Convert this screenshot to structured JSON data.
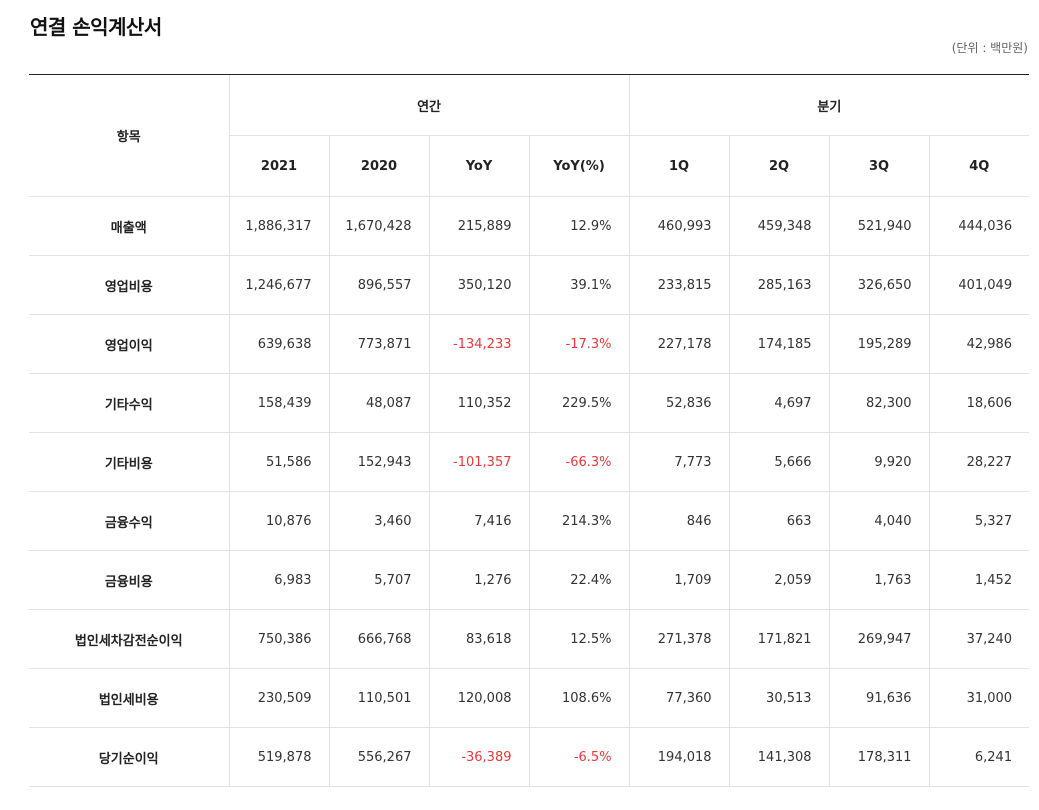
{
  "page": {
    "title": "연결 손익계산서",
    "unit": "(단위 : 백만원)"
  },
  "table": {
    "item_header": "항목",
    "groups": {
      "annual": "연간",
      "quarterly": "분기"
    },
    "columns": [
      "2021",
      "2020",
      "YoY",
      "YoY(%)",
      "1Q",
      "2Q",
      "3Q",
      "4Q"
    ],
    "rows": [
      {
        "label": "매출액",
        "values": [
          "1,886,317",
          "1,670,428",
          "215,889",
          "12.9%",
          "460,993",
          "459,348",
          "521,940",
          "444,036"
        ]
      },
      {
        "label": "영업비용",
        "values": [
          "1,246,677",
          "896,557",
          "350,120",
          "39.1%",
          "233,815",
          "285,163",
          "326,650",
          "401,049"
        ]
      },
      {
        "label": "영업이익",
        "values": [
          "639,638",
          "773,871",
          "-134,233",
          "-17.3%",
          "227,178",
          "174,185",
          "195,289",
          "42,986"
        ]
      },
      {
        "label": "기타수익",
        "values": [
          "158,439",
          "48,087",
          "110,352",
          "229.5%",
          "52,836",
          "4,697",
          "82,300",
          "18,606"
        ]
      },
      {
        "label": "기타비용",
        "values": [
          "51,586",
          "152,943",
          "-101,357",
          "-66.3%",
          "7,773",
          "5,666",
          "9,920",
          "28,227"
        ]
      },
      {
        "label": "금융수익",
        "values": [
          "10,876",
          "3,460",
          "7,416",
          "214.3%",
          "846",
          "663",
          "4,040",
          "5,327"
        ]
      },
      {
        "label": "금융비용",
        "values": [
          "6,983",
          "5,707",
          "1,276",
          "22.4%",
          "1,709",
          "2,059",
          "1,763",
          "1,452"
        ]
      },
      {
        "label": "법인세차감전순이익",
        "values": [
          "750,386",
          "666,768",
          "83,618",
          "12.5%",
          "271,378",
          "171,821",
          "269,947",
          "37,240"
        ]
      },
      {
        "label": "법인세비용",
        "values": [
          "230,509",
          "110,501",
          "120,008",
          "108.6%",
          "77,360",
          "30,513",
          "91,636",
          "31,000"
        ]
      },
      {
        "label": "당기순이익",
        "values": [
          "519,878",
          "556,267",
          "-36,389",
          "-6.5%",
          "194,018",
          "141,308",
          "178,311",
          "6,241"
        ]
      }
    ]
  },
  "colors": {
    "negative": "#e5393b",
    "text": "#222222",
    "border": "#e2e2e2",
    "header_top_border": "#222222"
  }
}
